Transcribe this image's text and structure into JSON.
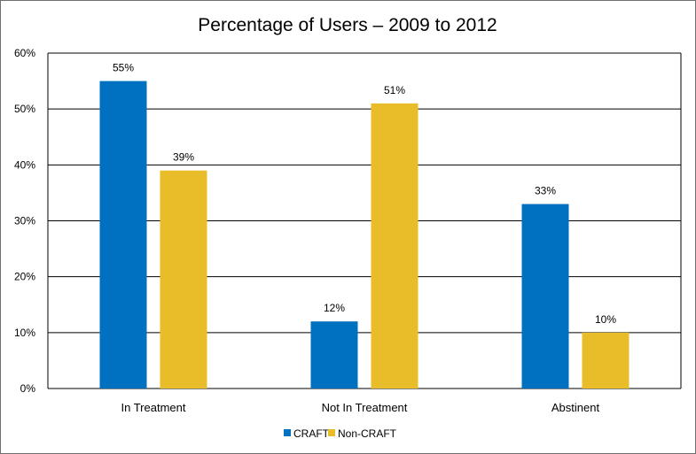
{
  "chart_data": {
    "type": "bar",
    "title": "Percentage of Users – 2009 to 2012",
    "xlabel": "",
    "ylabel": "",
    "categories": [
      "In Treatment",
      "Not In Treatment",
      "Abstinent"
    ],
    "series": [
      {
        "name": "CRAFT",
        "color": "#0070C0",
        "values": [
          55,
          12,
          33
        ],
        "labels": [
          "55%",
          "12%",
          "33%"
        ]
      },
      {
        "name": "Non-CRAFT",
        "color": "#E9BC2A",
        "values": [
          39,
          51,
          10
        ],
        "labels": [
          "39%",
          "51%",
          "10%"
        ]
      }
    ],
    "ylim": [
      0,
      60
    ],
    "yticks": [
      0,
      10,
      20,
      30,
      40,
      50,
      60
    ],
    "ytick_labels": [
      "0%",
      "10%",
      "20%",
      "30%",
      "40%",
      "50%",
      "60%"
    ],
    "grid": true,
    "legend_position": "bottom"
  }
}
